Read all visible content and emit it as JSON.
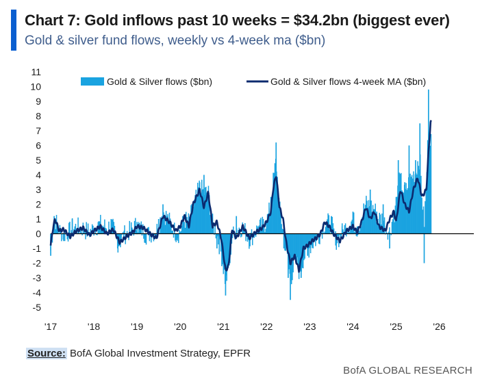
{
  "header": {
    "title": "Chart 7: Gold inflows past 10 weeks = $34.2bn (biggest ever)",
    "subtitle": "Gold & silver fund flows, weekly vs 4-week ma ($bn)"
  },
  "footer": {
    "source_label": "Source:",
    "source_text": " BofA Global Investment Strategy, EPFR",
    "brand": "BofA GLOBAL RESEARCH"
  },
  "colors": {
    "accent": "#0a5fd0",
    "bar": "#1aa3e0",
    "line": "#0c2a6e",
    "zero": "#000000"
  },
  "chart_data": {
    "type": "bar+line",
    "title": "Chart 7: Gold inflows past 10 weeks = $34.2bn (biggest ever)",
    "subtitle": "Gold & silver fund flows, weekly vs 4-week ma ($bn)",
    "xlabel": "",
    "ylabel": "",
    "ylim": [
      -5,
      11
    ],
    "xlim": [
      2017,
      2026.8
    ],
    "x_ticks": [
      "'17",
      "'18",
      "'19",
      "'20",
      "'21",
      "'22",
      "'23",
      "'24",
      "'25",
      "'26"
    ],
    "y_ticks": [
      11,
      10,
      9,
      8,
      7,
      6,
      5,
      4,
      3,
      2,
      1,
      0,
      -1,
      -2,
      -3,
      -4,
      -5
    ],
    "legend": {
      "position": "top",
      "entries": [
        "Gold & Silver flows ($bn)",
        "Gold & Silver flows 4-week MA ($bn)"
      ]
    },
    "ma_anchors": {
      "x": [
        2017.0,
        2017.05,
        2017.1,
        2017.2,
        2017.3,
        2017.45,
        2017.6,
        2017.75,
        2017.9,
        2018.0,
        2018.15,
        2018.3,
        2018.45,
        2018.6,
        2018.75,
        2018.9,
        2019.0,
        2019.15,
        2019.3,
        2019.45,
        2019.6,
        2019.75,
        2019.9,
        2020.0,
        2020.1,
        2020.2,
        2020.3,
        2020.45,
        2020.55,
        2020.65,
        2020.75,
        2020.85,
        2020.95,
        2021.05,
        2021.12,
        2021.2,
        2021.3,
        2021.45,
        2021.6,
        2021.75,
        2021.9,
        2022.0,
        2022.1,
        2022.15,
        2022.22,
        2022.3,
        2022.38,
        2022.45,
        2022.55,
        2022.65,
        2022.75,
        2022.85,
        2022.95,
        2023.05,
        2023.15,
        2023.25,
        2023.35,
        2023.45,
        2023.55,
        2023.7,
        2023.85,
        2024.0,
        2024.1,
        2024.2,
        2024.3,
        2024.4,
        2024.5,
        2024.6,
        2024.75,
        2024.85,
        2024.95,
        2025.0,
        2025.1,
        2025.2,
        2025.3,
        2025.4,
        2025.5,
        2025.6,
        2025.7,
        2025.75,
        2025.8
      ],
      "y": [
        -0.8,
        0.3,
        1.0,
        0.2,
        0.3,
        -0.2,
        0.2,
        0.4,
        -0.1,
        0.2,
        0.5,
        0.0,
        0.3,
        -0.6,
        -0.2,
        0.1,
        0.5,
        0.4,
        0.0,
        -0.3,
        1.2,
        0.8,
        0.2,
        0.5,
        1.2,
        0.5,
        2.0,
        3.0,
        1.8,
        2.8,
        0.5,
        0.8,
        -0.3,
        -2.5,
        -2.2,
        0.3,
        -0.3,
        0.5,
        -0.3,
        0.1,
        0.4,
        0.8,
        1.5,
        3.0,
        4.0,
        1.8,
        1.0,
        -0.5,
        -2.0,
        -1.5,
        -2.5,
        -1.0,
        -0.8,
        -0.5,
        -0.3,
        0.0,
        0.8,
        0.5,
        0.0,
        -0.5,
        0.2,
        0.5,
        0.1,
        0.8,
        1.8,
        1.0,
        1.5,
        0.5,
        0.2,
        1.0,
        1.5,
        0.8,
        3.0,
        2.0,
        1.5,
        3.0,
        3.8,
        2.5,
        3.0,
        5.5,
        7.6
      ]
    },
    "bar_anchors": {
      "x": [
        2017.0,
        2017.08,
        2017.3,
        2017.5,
        2017.8,
        2018.1,
        2018.4,
        2018.55,
        2018.7,
        2019.0,
        2019.2,
        2019.5,
        2019.6,
        2019.7,
        2019.95,
        2020.15,
        2020.3,
        2020.45,
        2020.55,
        2020.65,
        2020.85,
        2021.05,
        2021.15,
        2021.3,
        2021.6,
        2021.8,
        2022.0,
        2022.1,
        2022.22,
        2022.3,
        2022.4,
        2022.5,
        2022.55,
        2022.7,
        2022.8,
        2022.95,
        2023.15,
        2023.3,
        2023.5,
        2023.6,
        2023.75,
        2024.0,
        2024.1,
        2024.25,
        2024.4,
        2024.55,
        2024.7,
        2024.85,
        2025.0,
        2025.05,
        2025.2,
        2025.3,
        2025.45,
        2025.55,
        2025.65,
        2025.75,
        2025.8
      ],
      "y": [
        -1.5,
        1.2,
        -0.5,
        1.0,
        0.2,
        0.8,
        1.0,
        -1.0,
        0.2,
        0.8,
        -0.5,
        1.0,
        2.0,
        1.2,
        -0.5,
        1.0,
        1.5,
        3.5,
        4.0,
        2.8,
        -1.0,
        -4.2,
        -2.0,
        1.2,
        -0.5,
        0.5,
        0.8,
        2.5,
        6.2,
        1.5,
        -1.0,
        -3.0,
        -4.5,
        -2.0,
        -3.0,
        -1.5,
        -0.5,
        0.5,
        1.2,
        -0.8,
        0.5,
        1.5,
        0.5,
        2.0,
        3.0,
        1.5,
        2.0,
        -1.0,
        2.5,
        5.0,
        3.5,
        6.0,
        5.0,
        7.5,
        -2.0,
        9.8,
        5.0
      ]
    }
  }
}
